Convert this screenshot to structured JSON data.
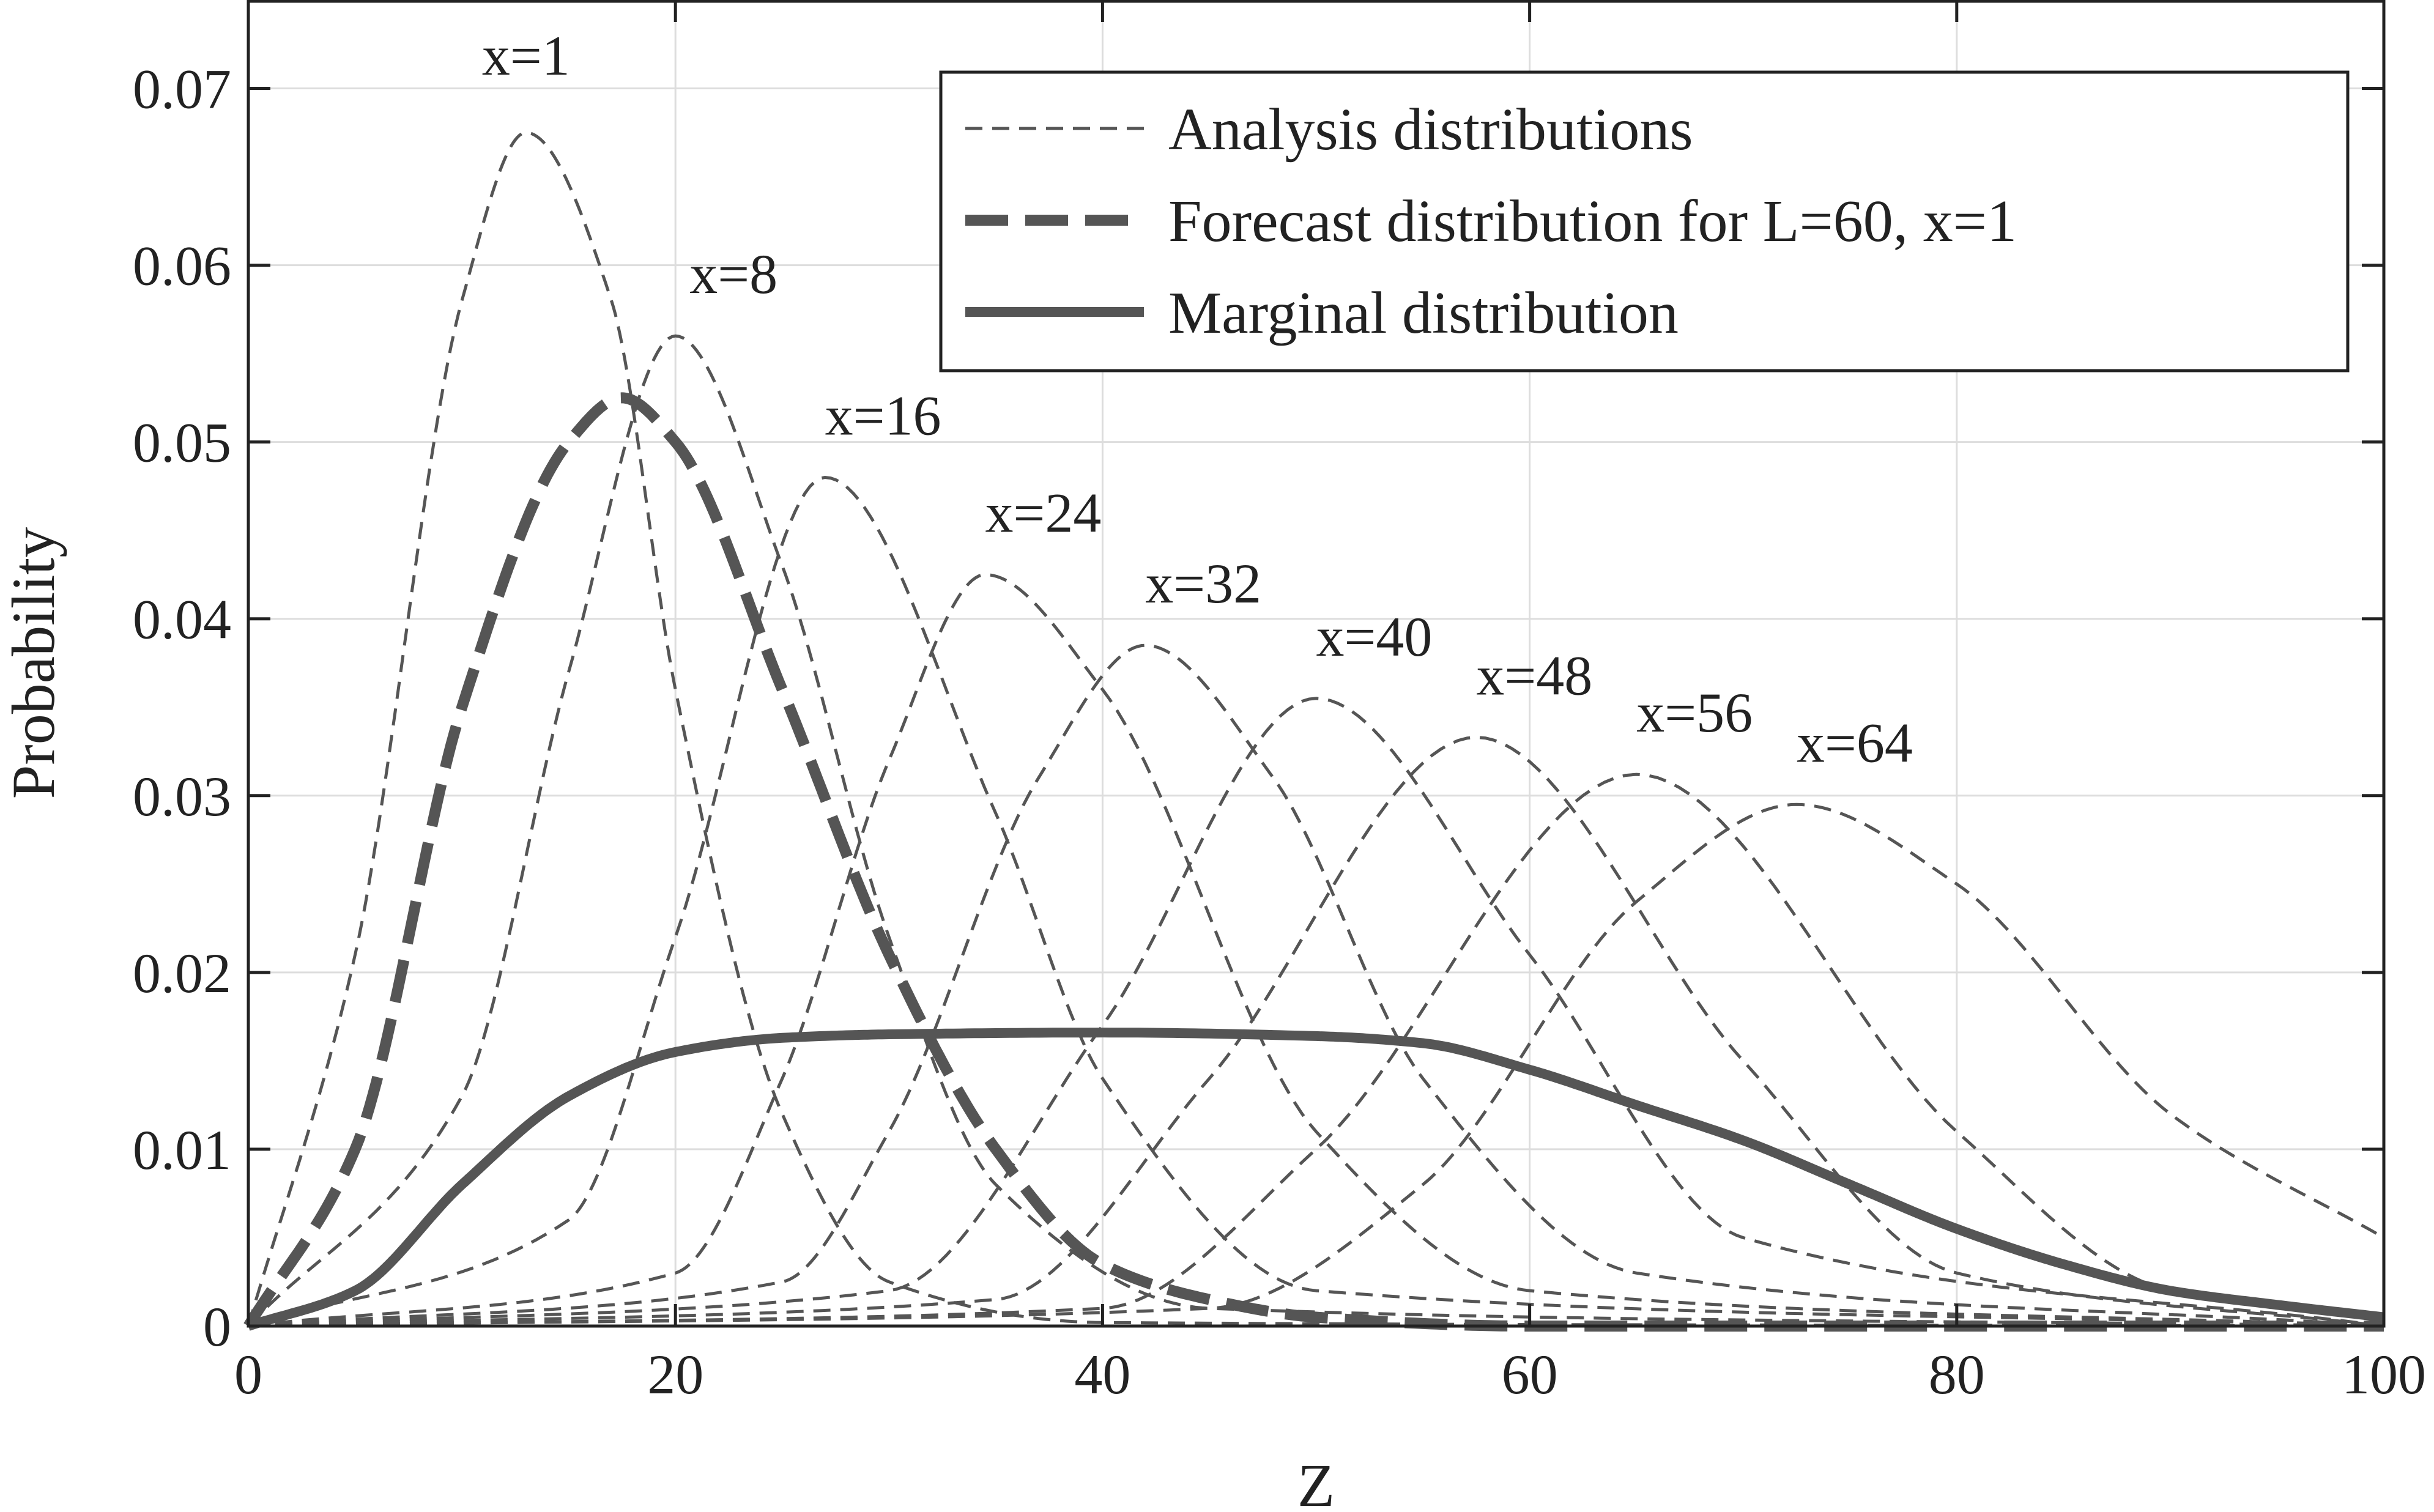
{
  "chart_data": {
    "type": "line",
    "xlabel": "Z",
    "ylabel": "Probability",
    "xlim": [
      0,
      100
    ],
    "ylim": [
      0,
      0.075
    ],
    "xticks": [
      0,
      20,
      40,
      60,
      80,
      100
    ],
    "xtick_labels": [
      "0",
      "20",
      "40",
      "60",
      "80",
      "100"
    ],
    "yticks": [
      0,
      0.01,
      0.02,
      0.03,
      0.04,
      0.05,
      0.06,
      0.07
    ],
    "ytick_labels": [
      "0",
      "0.01",
      "0.02",
      "0.03",
      "0.04",
      "0.05",
      "0.06",
      "0.07"
    ],
    "grid": true,
    "legend_position": "top-right",
    "legend": [
      {
        "label": "Analysis distributions",
        "style": "thin-dashed"
      },
      {
        "label": "Forecast distribution for L=60, x=1",
        "style": "thick-dashed"
      },
      {
        "label": "Marginal distribution",
        "style": "thick-solid"
      }
    ],
    "series": [
      {
        "group": "analysis",
        "label": "x=1",
        "peak_z": 13,
        "peak_prob": 0.0675,
        "curve_points": [
          [
            0,
            0
          ],
          [
            5,
            0.021
          ],
          [
            10,
            0.058
          ],
          [
            13,
            0.0675
          ],
          [
            17,
            0.058
          ],
          [
            20,
            0.036
          ],
          [
            25,
            0.012
          ],
          [
            30,
            0.0025
          ],
          [
            40,
            0.0002
          ],
          [
            100,
            0
          ]
        ]
      },
      {
        "group": "analysis",
        "label": "x=8",
        "peak_z": 20,
        "peak_prob": 0.056,
        "curve_points": [
          [
            0,
            0
          ],
          [
            10,
            0.013
          ],
          [
            15,
            0.037
          ],
          [
            20,
            0.056
          ],
          [
            25,
            0.043
          ],
          [
            30,
            0.022
          ],
          [
            35,
            0.008
          ],
          [
            45,
            0.001
          ],
          [
            100,
            0
          ]
        ]
      },
      {
        "group": "analysis",
        "label": "x=16",
        "peak_z": 27,
        "peak_prob": 0.048,
        "curve_points": [
          [
            0,
            0
          ],
          [
            15,
            0.006
          ],
          [
            20,
            0.022
          ],
          [
            27,
            0.048
          ],
          [
            35,
            0.029
          ],
          [
            40,
            0.014
          ],
          [
            50,
            0.002
          ],
          [
            100,
            0
          ]
        ]
      },
      {
        "group": "analysis",
        "label": "x=24",
        "peak_z": 34.5,
        "peak_prob": 0.0425,
        "curve_points": [
          [
            0,
            0
          ],
          [
            20,
            0.003
          ],
          [
            25,
            0.014
          ],
          [
            30,
            0.032
          ],
          [
            34.5,
            0.0425
          ],
          [
            40,
            0.036
          ],
          [
            50,
            0.011
          ],
          [
            60,
            0.002
          ],
          [
            100,
            0
          ]
        ]
      },
      {
        "group": "analysis",
        "label": "x=32",
        "peak_z": 42,
        "peak_prob": 0.0385,
        "curve_points": [
          [
            0,
            0
          ],
          [
            25,
            0.0025
          ],
          [
            30,
            0.011
          ],
          [
            37,
            0.031
          ],
          [
            42,
            0.0385
          ],
          [
            48,
            0.031
          ],
          [
            55,
            0.014
          ],
          [
            65,
            0.003
          ],
          [
            100,
            0
          ]
        ]
      },
      {
        "group": "analysis",
        "label": "x=40",
        "peak_z": 50,
        "peak_prob": 0.0355,
        "curve_points": [
          [
            0,
            0
          ],
          [
            30,
            0.002
          ],
          [
            40,
            0.017
          ],
          [
            50,
            0.0355
          ],
          [
            60,
            0.021
          ],
          [
            70,
            0.005
          ],
          [
            100,
            0
          ]
        ]
      },
      {
        "group": "analysis",
        "label": "x=48",
        "peak_z": 57.5,
        "peak_prob": 0.0333,
        "curve_points": [
          [
            0,
            0
          ],
          [
            35,
            0.0015
          ],
          [
            45,
            0.014
          ],
          [
            57.5,
            0.0333
          ],
          [
            70,
            0.015
          ],
          [
            80,
            0.003
          ],
          [
            100,
            0
          ]
        ]
      },
      {
        "group": "analysis",
        "label": "x=56",
        "peak_z": 65,
        "peak_prob": 0.0312,
        "curve_points": [
          [
            0,
            0
          ],
          [
            40,
            0.001
          ],
          [
            50,
            0.01
          ],
          [
            65,
            0.0312
          ],
          [
            80,
            0.011
          ],
          [
            90,
            0.002
          ],
          [
            100,
            0.0005
          ]
        ]
      },
      {
        "group": "analysis",
        "label": "x=64",
        "peak_z": 72.5,
        "peak_prob": 0.0295,
        "curve_points": [
          [
            0,
            0
          ],
          [
            45,
            0.001
          ],
          [
            55,
            0.008
          ],
          [
            65,
            0.024
          ],
          [
            72.5,
            0.0295
          ],
          [
            80,
            0.025
          ],
          [
            90,
            0.012
          ],
          [
            100,
            0.005
          ]
        ]
      },
      {
        "group": "forecast",
        "label": "Forecast distribution for L=60, x=1",
        "curve_points": [
          [
            0,
            0
          ],
          [
            5,
            0.01
          ],
          [
            10,
            0.035
          ],
          [
            15,
            0.05
          ],
          [
            17.5,
            0.0525
          ],
          [
            20,
            0.05
          ],
          [
            25,
            0.036
          ],
          [
            30,
            0.021
          ],
          [
            35,
            0.01
          ],
          [
            40,
            0.0035
          ],
          [
            45,
            0.0015
          ],
          [
            50,
            0.0005
          ],
          [
            60,
            0
          ],
          [
            100,
            0
          ]
        ]
      },
      {
        "group": "marginal",
        "label": "Marginal distribution",
        "curve_points": [
          [
            0,
            0
          ],
          [
            5,
            0.002
          ],
          [
            10,
            0.008
          ],
          [
            15,
            0.013
          ],
          [
            20,
            0.0155
          ],
          [
            25,
            0.0163
          ],
          [
            30,
            0.0165
          ],
          [
            40,
            0.0166
          ],
          [
            50,
            0.0164
          ],
          [
            55,
            0.016
          ],
          [
            60,
            0.0145
          ],
          [
            65,
            0.0125
          ],
          [
            70,
            0.0105
          ],
          [
            75,
            0.008
          ],
          [
            80,
            0.0055
          ],
          [
            85,
            0.0035
          ],
          [
            90,
            0.002
          ],
          [
            95,
            0.0012
          ],
          [
            100,
            0.0005
          ]
        ]
      }
    ]
  },
  "style": {
    "line_color": "#555555",
    "grid_color": "#dddddd",
    "axis_color": "#222222"
  }
}
